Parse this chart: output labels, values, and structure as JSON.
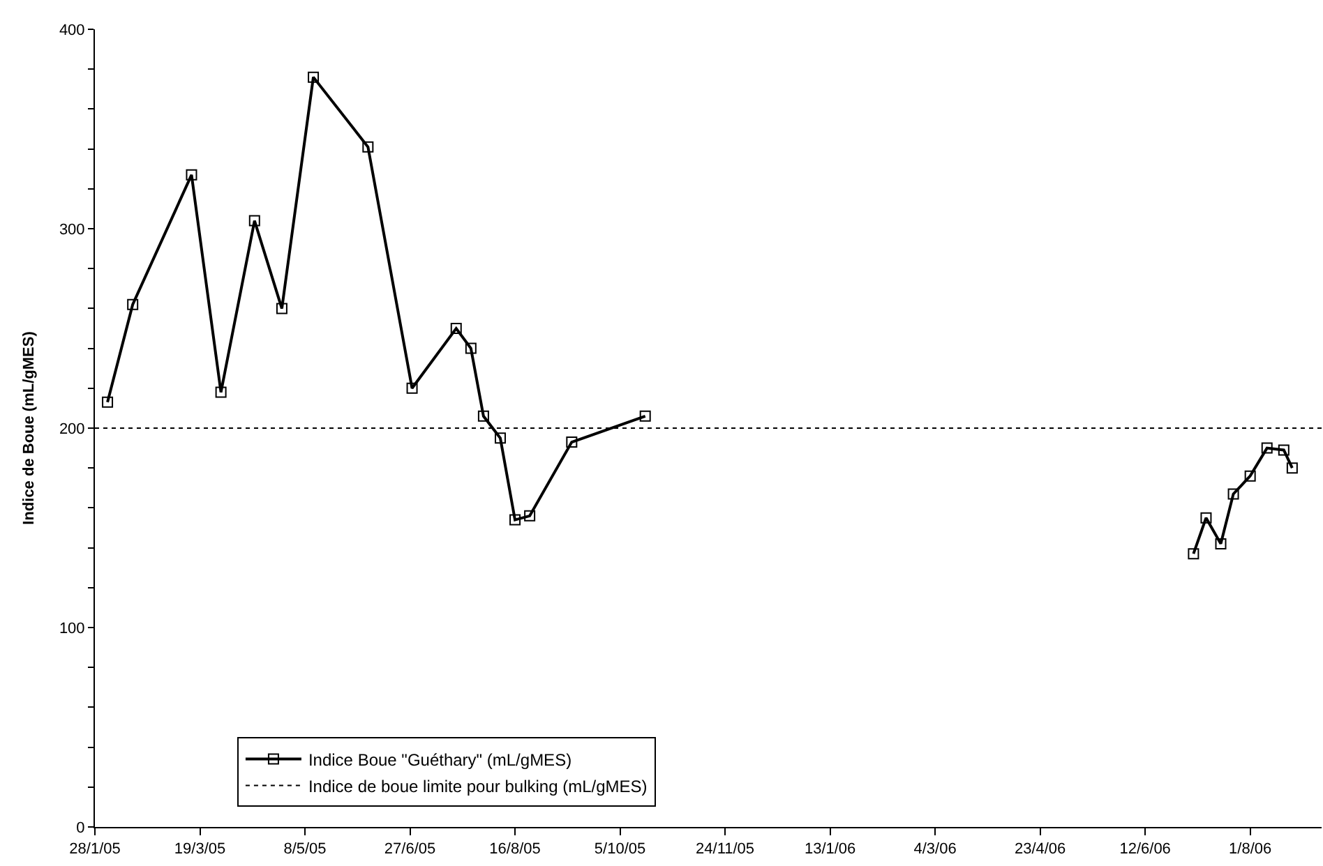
{
  "chart_data": {
    "type": "line",
    "ylabel": "Indice de Boue (mL/gMES)",
    "series": [
      {
        "name": "Indice Boue \"Guéthary\" (mL/gMES)",
        "color": "#000000",
        "marker": "square",
        "line_style": "solid",
        "x": [
          "2005-02-03",
          "2005-02-15",
          "2005-03-15",
          "2005-03-29",
          "2005-04-14",
          "2005-04-27",
          "2005-05-12",
          "2005-06-07",
          "2005-06-28",
          "2005-07-19",
          "2005-07-26",
          "2005-08-01",
          "2005-08-09",
          "2005-08-16",
          "2005-08-23",
          "2005-09-12",
          "2005-10-17",
          "2006-01-01",
          "2006-07-05",
          "2006-07-11",
          "2006-07-18",
          "2006-07-24",
          "2006-08-01",
          "2006-08-09",
          "2006-08-17",
          "2006-08-21"
        ],
        "values": [
          213,
          262,
          327,
          218,
          304,
          260,
          376,
          341,
          220,
          250,
          240,
          206,
          195,
          154,
          156,
          193,
          206,
          null,
          137,
          155,
          142,
          167,
          176,
          190,
          189,
          180
        ]
      }
    ],
    "ref_lines": [
      {
        "axis": "y",
        "value": 200,
        "label": "Indice de boue limite pour bulking (mL/gMES)",
        "color": "#000000",
        "line_style": "dotted"
      }
    ],
    "xlim": [
      "2005-01-28",
      "2006-09-04"
    ],
    "xticks": [
      {
        "value": "2005-01-28",
        "label": "28/1/05"
      },
      {
        "value": "2005-03-19",
        "label": "19/3/05"
      },
      {
        "value": "2005-05-08",
        "label": "8/5/05"
      },
      {
        "value": "2005-06-27",
        "label": "27/6/05"
      },
      {
        "value": "2005-08-16",
        "label": "16/8/05"
      },
      {
        "value": "2005-10-05",
        "label": "5/10/05"
      },
      {
        "value": "2005-11-24",
        "label": "24/11/05"
      },
      {
        "value": "2006-01-13",
        "label": "13/1/06"
      },
      {
        "value": "2006-03-04",
        "label": "4/3/06"
      },
      {
        "value": "2006-04-23",
        "label": "23/4/06"
      },
      {
        "value": "2006-06-12",
        "label": "12/6/06"
      },
      {
        "value": "2006-08-01",
        "label": "1/8/06"
      }
    ],
    "ylim": [
      0,
      400
    ],
    "yticks": [
      0,
      {
        "value": 20,
        "label": null
      },
      {
        "value": 40,
        "label": null
      },
      {
        "value": 60,
        "label": null
      },
      {
        "value": 80,
        "label": null
      },
      100,
      {
        "value": 120,
        "label": null
      },
      {
        "value": 140,
        "label": null
      },
      {
        "value": 160,
        "label": null
      },
      {
        "value": 180,
        "label": null
      },
      200,
      {
        "value": 220,
        "label": null
      },
      {
        "value": 240,
        "label": null
      },
      {
        "value": 260,
        "label": null
      },
      {
        "value": 280,
        "label": null
      },
      300,
      {
        "value": 320,
        "label": null
      },
      {
        "value": 340,
        "label": null
      },
      {
        "value": 360,
        "label": null
      },
      {
        "value": 380,
        "label": null
      },
      400
    ],
    "legend": "bottom left"
  }
}
